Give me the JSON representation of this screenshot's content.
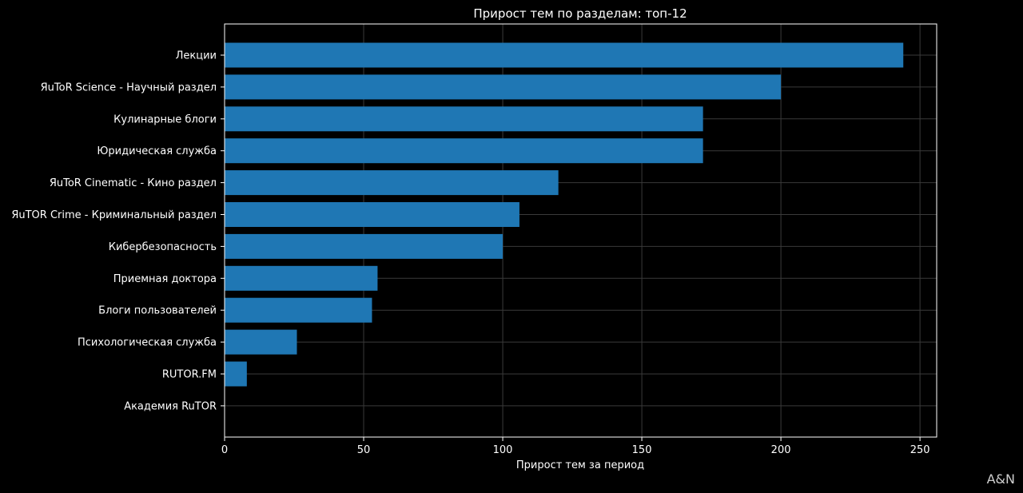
{
  "watermark": "A&N",
  "colors": {
    "background": "#000000",
    "bar": "#1f77b4",
    "axis": "#ffffff",
    "grid": "#3a3a3a",
    "text": "#ffffff"
  },
  "chart_data": {
    "type": "bar",
    "orientation": "horizontal",
    "title": "Прирост тем по разделам: топ-12",
    "xlabel": "Прирост тем за период",
    "ylabel": "",
    "xlim": [
      0,
      256
    ],
    "xticks": [
      0,
      50,
      100,
      150,
      200,
      250
    ],
    "grid": true,
    "categories": [
      "Лекции",
      "ЯuToR Science - Научный раздел",
      "Кулинарные блоги",
      "Юридическая служба",
      "ЯuToR Cinematic - Кино раздел",
      "ЯuTOR Crime - Криминальный раздел",
      "Кибербезопасность",
      "Приемная доктора",
      "Блоги пользователей",
      "Психологическая служба",
      "RUTOR.FM",
      "Академия RuTOR"
    ],
    "values": [
      244,
      200,
      172,
      172,
      120,
      106,
      100,
      55,
      53,
      26,
      8,
      0
    ]
  }
}
